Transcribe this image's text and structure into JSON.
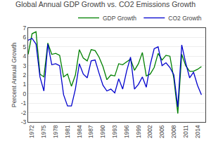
{
  "chart_data": {
    "type": "line",
    "title": "Global Annual GDP Growth vs. CO2 Emissions Growth",
    "y_label": "Percent Annual Growth",
    "x": [
      1971,
      1972,
      1973,
      1974,
      1975,
      1976,
      1977,
      1978,
      1979,
      1980,
      1981,
      1982,
      1983,
      1984,
      1985,
      1986,
      1987,
      1988,
      1989,
      1990,
      1991,
      1992,
      1993,
      1994,
      1995,
      1996,
      1997,
      1998,
      1999,
      2000,
      2001,
      2002,
      2003,
      2004,
      2005,
      2006,
      2007,
      2008,
      2009,
      2010,
      2011,
      2012,
      2013,
      2014,
      2015
    ],
    "series": [
      {
        "name": "GDP Growth",
        "color": "#008000",
        "values": [
          4.2,
          6.4,
          6.6,
          2.1,
          1.8,
          5.4,
          4.2,
          4.3,
          4.1,
          1.8,
          2.1,
          0.8,
          2.0,
          4.7,
          3.8,
          3.5,
          4.7,
          4.6,
          3.9,
          2.9,
          1.5,
          2.0,
          1.9,
          3.2,
          3.1,
          3.4,
          3.7,
          2.5,
          3.2,
          4.4,
          1.9,
          2.1,
          2.8,
          4.3,
          3.6,
          4.1,
          4.0,
          1.6,
          -2.1,
          4.2,
          3.0,
          2.4,
          2.4,
          2.6,
          2.9
        ]
      },
      {
        "name": "CO2 Growth",
        "color": "#0000cd",
        "values": [
          5.7,
          5.9,
          5.3,
          1.8,
          0.3,
          5.3,
          3.1,
          3.2,
          3.0,
          -0.1,
          -1.3,
          -1.3,
          0.5,
          3.2,
          2.1,
          1.7,
          3.5,
          3.6,
          2.2,
          0.9,
          0.3,
          0.5,
          0.1,
          1.6,
          0.5,
          2.4,
          3.9,
          0.5,
          1.0,
          1.8,
          0.7,
          3.1,
          4.8,
          5.0,
          3.0,
          3.3,
          2.8,
          2.0,
          -1.4,
          5.2,
          3.3,
          1.7,
          2.3,
          0.9,
          -0.1
        ]
      }
    ],
    "xlim": [
      1971,
      2016
    ],
    "xticks": [
      1972,
      1975,
      1978,
      1981,
      1984,
      1987,
      1990,
      1993,
      1996,
      1999,
      2002,
      2005,
      2008,
      2011,
      2014
    ],
    "ylim": [
      -3,
      7
    ],
    "yticks": [
      -3,
      -2,
      -1,
      0,
      1,
      2,
      3,
      4,
      5,
      6,
      7
    ],
    "grid": true,
    "legend": "upper right"
  }
}
